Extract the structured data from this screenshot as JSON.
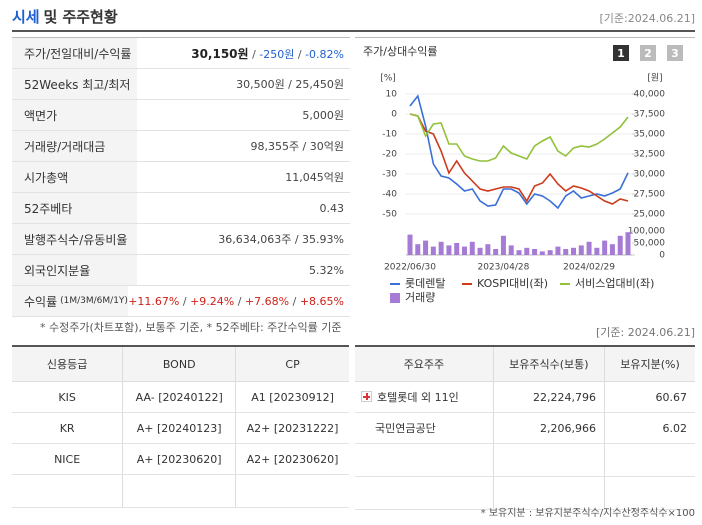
{
  "header": {
    "title_highlight": "시세",
    "title": "및 주주현황",
    "date": "[기준:2024.06.21]"
  },
  "summary": {
    "rows": [
      {
        "label": "주가/전일대비/수익률",
        "parts": [
          {
            "text": "30,150원",
            "color": "#222222",
            "bold": true
          },
          {
            "text": " / ",
            "color": "#555555"
          },
          {
            "text": "-250원",
            "color": "#1f5fd0"
          },
          {
            "text": " / ",
            "color": "#555555"
          },
          {
            "text": "-0.82%",
            "color": "#1f5fd0"
          }
        ]
      },
      {
        "label": "52Weeks 최고/최저",
        "parts": [
          {
            "text": "30,500원 / 25,450원",
            "color": "#444444"
          }
        ]
      },
      {
        "label": "액면가",
        "parts": [
          {
            "text": "5,000원",
            "color": "#444444"
          }
        ]
      },
      {
        "label": "거래량/거래대금",
        "parts": [
          {
            "text": "98,355주 / 30억원",
            "color": "#444444"
          }
        ]
      },
      {
        "label": "시가총액",
        "parts": [
          {
            "text": "11,045억원",
            "color": "#444444"
          }
        ]
      },
      {
        "label": "52주베타",
        "parts": [
          {
            "text": "0.43",
            "color": "#444444"
          }
        ]
      },
      {
        "label": "발행주식수/유동비율",
        "parts": [
          {
            "text": "36,634,063주 / 35.93%",
            "color": "#444444"
          }
        ]
      },
      {
        "label": "외국인지분율",
        "parts": [
          {
            "text": "5.32%",
            "color": "#444444"
          }
        ]
      },
      {
        "label": "수익률",
        "label_note": "(1M/3M/6M/1Y)",
        "parts": [
          {
            "text": "+11.67%",
            "color": "#d0201a"
          },
          {
            "text": " / ",
            "color": "#555555"
          },
          {
            "text": "+9.24%",
            "color": "#d0201a"
          },
          {
            "text": " / ",
            "color": "#555555"
          },
          {
            "text": "+7.68%",
            "color": "#d0201a"
          },
          {
            "text": " / ",
            "color": "#555555"
          },
          {
            "text": "+8.65%",
            "color": "#d0201a"
          }
        ]
      }
    ],
    "footnote": "* 수정주가(차트포함), 보통주 기준, * 52주베타: 주간수익률 기준"
  },
  "chart_data": {
    "type": "line",
    "title": "주가/상대수익률",
    "tabs": [
      "1",
      "2",
      "3"
    ],
    "categories": [
      "2022/06/30",
      null,
      null,
      null,
      null,
      null,
      null,
      null,
      null,
      null,
      null,
      null,
      "2023/04/28",
      null,
      null,
      null,
      null,
      null,
      null,
      null,
      null,
      null,
      null,
      "2024/02/29",
      null,
      null,
      null,
      null,
      null
    ],
    "ylabel": "[%]",
    "y2label": "[원]",
    "ylim": [
      -50,
      10
    ],
    "yticks": [
      10,
      0,
      -10,
      -20,
      -30,
      -40,
      -50
    ],
    "y2lim": [
      25000,
      40000
    ],
    "y2ticks": [
      {
        "value": 40000,
        "label": "40,000"
      },
      {
        "value": 37500,
        "label": "37,500"
      },
      {
        "value": 35000,
        "label": "35,000"
      },
      {
        "value": 32500,
        "label": "32,500"
      },
      {
        "value": 30000,
        "label": "30,000"
      },
      {
        "value": 27500,
        "label": "27,500"
      },
      {
        "value": 25000,
        "label": "25,000"
      }
    ],
    "y3lim": [
      0,
      100000
    ],
    "y3ticks": [
      {
        "value": 100000,
        "label": "100,000"
      },
      {
        "value": 50000,
        "label": "50,000"
      },
      0
    ],
    "series": [
      {
        "name": "롯데렌탈",
        "color": "#3a6fd8",
        "axis": "y2",
        "values": [
          38500,
          39750,
          36000,
          31250,
          29750,
          29500,
          28750,
          27875,
          28125,
          26625,
          26000,
          26125,
          28125,
          28125,
          27625,
          26250,
          27500,
          27250,
          26625,
          25750,
          27250,
          27875,
          27000,
          27250,
          27500,
          27250,
          27625,
          28125,
          30150
        ]
      },
      {
        "name": "KOSPI대비(좌)",
        "color": "#cc3a1a",
        "values": [
          0,
          -1,
          -8.5,
          -10,
          -18.5,
          -29.5,
          -23.5,
          -29.5,
          -33.5,
          -37.5,
          -38.5,
          -37.5,
          -36.5,
          -36.5,
          -37.5,
          -43.5,
          -36,
          -34.5,
          -30,
          -35,
          -38.5,
          -36,
          -37,
          -38.5,
          -41,
          -43.5,
          -45,
          -42.5,
          -43.5
        ]
      },
      {
        "name": "서비스업대비(좌)",
        "color": "#92c13a",
        "values": [
          0,
          -1,
          -11,
          -5,
          -4.5,
          -15,
          -15,
          -21,
          -22.5,
          -23.5,
          -23.5,
          -22,
          -16,
          -19.5,
          -21,
          -22.5,
          -16,
          -13.5,
          -11.5,
          -18.5,
          -21,
          -17,
          -16,
          -16.5,
          -15,
          -12.5,
          -9.5,
          -6.5,
          -1.5
        ]
      },
      {
        "name": "거래량",
        "color": "#a57bd6",
        "axis": "y3",
        "type": "bar",
        "values": [
          85000,
          45000,
          60000,
          35000,
          55000,
          40000,
          50000,
          35000,
          55000,
          30000,
          45000,
          25000,
          80000,
          40000,
          20000,
          30000,
          25000,
          15000,
          20000,
          35000,
          25000,
          30000,
          40000,
          55000,
          30000,
          60000,
          45000,
          80000,
          95000
        ]
      }
    ]
  },
  "credit": {
    "header": [
      "신용등급",
      "BOND",
      "CP"
    ],
    "rows": [
      [
        "KIS",
        "AA-  [20240122]",
        "A1  [20230912]"
      ],
      [
        "KR",
        "A+  [20240123]",
        "A2+  [20231222]"
      ],
      [
        "NICE",
        "A+  [20230620]",
        "A2+  [20230620]"
      ]
    ]
  },
  "holders": {
    "date": "[기준: 2024.06.21]",
    "header": [
      "주요주주",
      "보유주식수(보통)",
      "보유지분(%)"
    ],
    "rows": [
      [
        "호텔롯데 외 11인",
        "22,224,796",
        "60.67"
      ],
      [
        "국민연금공단",
        "2,206,966",
        "6.02"
      ]
    ],
    "footnote": "* 보유지분 : 보유지분주식수/지수산정주식수×100"
  }
}
